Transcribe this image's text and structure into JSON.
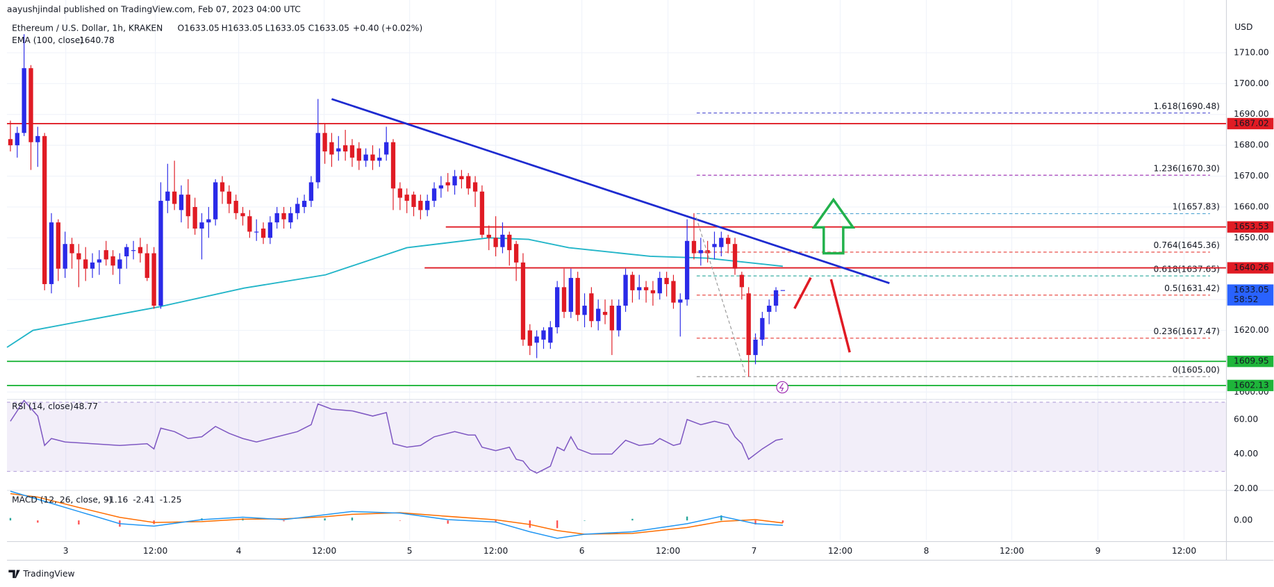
{
  "header": {
    "byline": "aayushjindal published on TradingView.com, Feb 07, 2023 04:00 UTC",
    "symbol": "Ethereum / U.S. Dollar, 1h, KRAKEN",
    "ohlc": [
      "O1633.05",
      "H1633.05",
      "L1633.05",
      "C1633.05",
      "+0.40 (+0.02%)"
    ],
    "currency": "USD",
    "footer": "TradingView"
  },
  "chart_data": [
    {
      "type": "candlestick",
      "up_color": "#2a2ae8",
      "down_color": "#e01b24",
      "xlim": [
        -0.5,
        177.9
      ],
      "ylim": [
        1597.6,
        1727.1
      ],
      "xticks": [
        {
          "value": 8.1,
          "label": "3"
        },
        {
          "value": 21.2,
          "label": "12:00"
        },
        {
          "value": 33.4,
          "label": "4"
        },
        {
          "value": 45.9,
          "label": "12:00"
        },
        {
          "value": 58.4,
          "label": "5"
        },
        {
          "value": 71.0,
          "label": "12:00"
        },
        {
          "value": 83.6,
          "label": "6"
        },
        {
          "value": 96.2,
          "label": "12:00"
        },
        {
          "value": 108.8,
          "label": "7"
        },
        {
          "value": 121.4,
          "label": "12:00"
        },
        {
          "value": 134.0,
          "label": "8"
        },
        {
          "value": 146.5,
          "label": "12:00"
        },
        {
          "value": 159.1,
          "label": "9"
        },
        {
          "value": 171.7,
          "label": "12:00"
        }
      ],
      "yticks": [
        {
          "value": 1600,
          "label": "1600.00"
        },
        {
          "value": 1610,
          "label": "1610.00"
        },
        {
          "value": 1620,
          "label": "1620.00"
        },
        {
          "value": 1630,
          "label": "1630.00"
        },
        {
          "value": 1640,
          "label": "1640.00"
        },
        {
          "value": 1650,
          "label": "1650.00"
        },
        {
          "value": 1660,
          "label": "1660.00"
        },
        {
          "value": 1670,
          "label": "1670.00"
        },
        {
          "value": 1680,
          "label": "1680.00"
        },
        {
          "value": 1690,
          "label": "1690.00"
        },
        {
          "value": 1700,
          "label": "1700.00"
        },
        {
          "value": 1710,
          "label": "1710.00"
        }
      ],
      "candles": [
        [
          1682,
          1688,
          1678,
          1680
        ],
        [
          1680,
          1686,
          1676,
          1684
        ],
        [
          1684,
          1716,
          1683,
          1705
        ],
        [
          1705,
          1706,
          1672,
          1681
        ],
        [
          1681,
          1686,
          1673,
          1683
        ],
        [
          1683,
          1684,
          1633,
          1635
        ],
        [
          1635,
          1658,
          1632,
          1655
        ],
        [
          1655,
          1656,
          1636,
          1640
        ],
        [
          1640,
          1652,
          1637,
          1648
        ],
        [
          1648,
          1650,
          1640,
          1645
        ],
        [
          1645,
          1648,
          1634,
          1643
        ],
        [
          1643,
          1647,
          1636,
          1640
        ],
        [
          1640,
          1645,
          1637,
          1642
        ],
        [
          1642,
          1646,
          1638,
          1643
        ],
        [
          1646,
          1649,
          1641,
          1643
        ],
        [
          1644,
          1646,
          1638,
          1641
        ],
        [
          1640,
          1645,
          1635,
          1643
        ],
        [
          1644,
          1648,
          1640,
          1647
        ],
        [
          1646,
          1649,
          1643,
          1646
        ],
        [
          1647,
          1650,
          1642,
          1645
        ],
        [
          1645,
          1648,
          1636,
          1637
        ],
        [
          1645,
          1647,
          1627,
          1628
        ],
        [
          1628,
          1668,
          1627,
          1662
        ],
        [
          1662,
          1674,
          1658,
          1665
        ],
        [
          1665,
          1675,
          1659,
          1661
        ],
        [
          1659,
          1667,
          1655,
          1664
        ],
        [
          1664,
          1669,
          1653,
          1657
        ],
        [
          1660,
          1663,
          1651,
          1653
        ],
        [
          1653,
          1658,
          1643,
          1655
        ],
        [
          1655,
          1660,
          1650,
          1656
        ],
        [
          1656,
          1669,
          1654,
          1668
        ],
        [
          1668,
          1670,
          1661,
          1665
        ],
        [
          1665,
          1667,
          1658,
          1661
        ],
        [
          1662,
          1664,
          1656,
          1658
        ],
        [
          1658,
          1660,
          1654,
          1657
        ],
        [
          1657,
          1659,
          1650,
          1652
        ],
        [
          1652,
          1656,
          1649,
          1652
        ],
        [
          1653,
          1655,
          1648,
          1650
        ],
        [
          1650,
          1657,
          1648,
          1655
        ],
        [
          1655,
          1660,
          1653,
          1658
        ],
        [
          1658,
          1660,
          1653,
          1656
        ],
        [
          1655,
          1660,
          1653,
          1658
        ],
        [
          1658,
          1663,
          1656,
          1661
        ],
        [
          1660,
          1664,
          1658,
          1662
        ],
        [
          1662,
          1670,
          1660,
          1668
        ],
        [
          1668,
          1695,
          1666,
          1684
        ],
        [
          1684,
          1687,
          1674,
          1678
        ],
        [
          1681,
          1684,
          1673,
          1677
        ],
        [
          1678,
          1683,
          1675,
          1679
        ],
        [
          1680,
          1685,
          1675,
          1678
        ],
        [
          1680,
          1682,
          1673,
          1676
        ],
        [
          1679,
          1681,
          1672,
          1675
        ],
        [
          1675,
          1679,
          1673,
          1677
        ],
        [
          1677,
          1680,
          1672,
          1675
        ],
        [
          1675,
          1679,
          1673,
          1676
        ],
        [
          1677,
          1686,
          1675,
          1681
        ],
        [
          1681,
          1682,
          1659,
          1666
        ],
        [
          1666,
          1668,
          1659,
          1663
        ],
        [
          1664,
          1666,
          1658,
          1662
        ],
        [
          1664,
          1665,
          1657,
          1660
        ],
        [
          1662,
          1664,
          1656,
          1659
        ],
        [
          1659,
          1664,
          1657,
          1662
        ],
        [
          1662,
          1668,
          1660,
          1666
        ],
        [
          1666,
          1670,
          1663,
          1667
        ],
        [
          1668,
          1671,
          1665,
          1667
        ],
        [
          1667,
          1672,
          1664,
          1670
        ],
        [
          1670,
          1672,
          1666,
          1669
        ],
        [
          1670,
          1671,
          1664,
          1666
        ],
        [
          1668,
          1670,
          1660,
          1665
        ],
        [
          1665,
          1667,
          1650,
          1651
        ],
        [
          1651,
          1654,
          1646,
          1650
        ],
        [
          1650,
          1657,
          1644,
          1647
        ],
        [
          1647,
          1655,
          1645,
          1651
        ],
        [
          1651,
          1652,
          1641,
          1646
        ],
        [
          1648,
          1649,
          1636,
          1642
        ],
        [
          1642,
          1645,
          1615,
          1617
        ],
        [
          1620,
          1622,
          1612,
          1615
        ],
        [
          1616,
          1620,
          1611,
          1618
        ],
        [
          1617,
          1621,
          1614,
          1620
        ],
        [
          1616,
          1623,
          1614,
          1621
        ],
        [
          1621,
          1636,
          1619,
          1634
        ],
        [
          1634,
          1640,
          1624,
          1626
        ],
        [
          1626,
          1640,
          1624,
          1637
        ],
        [
          1637,
          1639,
          1623,
          1625
        ],
        [
          1625,
          1632,
          1621,
          1628
        ],
        [
          1632,
          1634,
          1621,
          1623
        ],
        [
          1623,
          1630,
          1620,
          1627
        ],
        [
          1626,
          1630,
          1622,
          1625
        ],
        [
          1628,
          1630,
          1612,
          1620
        ],
        [
          1620,
          1630,
          1618,
          1628
        ],
        [
          1628,
          1640,
          1626,
          1638
        ],
        [
          1638,
          1639,
          1629,
          1633
        ],
        [
          1633,
          1638,
          1630,
          1634
        ],
        [
          1634,
          1636,
          1629,
          1633
        ],
        [
          1633,
          1636,
          1628,
          1632
        ],
        [
          1632,
          1639,
          1630,
          1637
        ],
        [
          1637,
          1639,
          1631,
          1635
        ],
        [
          1636,
          1638,
          1627,
          1629
        ],
        [
          1629,
          1632,
          1618,
          1630
        ],
        [
          1630,
          1656,
          1628,
          1649
        ],
        [
          1649,
          1658,
          1643,
          1645
        ],
        [
          1645,
          1650,
          1641,
          1646
        ],
        [
          1646,
          1649,
          1642,
          1645
        ],
        [
          1647,
          1652,
          1643,
          1648
        ],
        [
          1647,
          1652,
          1644,
          1650
        ],
        [
          1650,
          1651,
          1645,
          1648
        ],
        [
          1648,
          1650,
          1638,
          1640
        ],
        [
          1638,
          1639,
          1630,
          1634
        ],
        [
          1632,
          1634,
          1605,
          1612
        ],
        [
          1612,
          1619,
          1609,
          1617
        ],
        [
          1617,
          1626,
          1615,
          1624
        ],
        [
          1626,
          1630,
          1622,
          1628
        ],
        [
          1628,
          1634,
          1626,
          1633
        ],
        [
          1633.05,
          1633.05,
          1633.05,
          1633.05
        ]
      ],
      "ema": {
        "name": "EMA (100, close)",
        "color": "#22b5c8",
        "x": [
          -0.5,
          3.3,
          10.5,
          21.7,
          34.2,
          46.1,
          58,
          70,
          75.8,
          81.7,
          93.6,
          102,
          113
        ],
        "values": [
          1614.5,
          1620,
          1623,
          1627.6,
          1633.7,
          1638,
          1646.8,
          1650,
          1649.5,
          1646.8,
          1644,
          1643.4,
          1640.78
        ]
      },
      "trendline": {
        "color": "#1e2bd0",
        "x": [
          47,
          128.6
        ],
        "values": [
          1695,
          1635.3
        ]
      },
      "hlines": [
        {
          "value": 1687.02,
          "color": "#e01b24"
        },
        {
          "value": 1653.53,
          "color": "#e01b24",
          "from": 63.7
        },
        {
          "value": 1640.26,
          "color": "#e01b24",
          "from": 60.6
        },
        {
          "value": 1609.95,
          "color": "#1eb53a"
        },
        {
          "value": 1602.13,
          "color": "#1eb53a"
        }
      ],
      "fib": {
        "x": [
          100.4,
          175.5
        ],
        "levels": [
          {
            "value": 1690.48,
            "label": "1.618(1690.48)",
            "color": "#5b5bd6"
          },
          {
            "value": 1670.3,
            "label": "1.236(1670.30)",
            "color": "#9c27b0"
          },
          {
            "value": 1657.83,
            "label": "1(1657.83)",
            "color": "#4fa3d1"
          },
          {
            "value": 1645.36,
            "label": "0.764(1645.36)",
            "color": "#e53935"
          },
          {
            "value": 1637.65,
            "label": "0.618(1637.65)",
            "color": "#26a69a"
          },
          {
            "value": 1631.42,
            "label": "0.5(1631.42)",
            "color": "#e53935"
          },
          {
            "value": 1617.47,
            "label": "0.236(1617.47)",
            "color": "#e53935"
          },
          {
            "value": 1605.0,
            "label": "0(1605.00)",
            "color": "#888888"
          }
        ]
      },
      "last": {
        "value": 1633.05,
        "countdown": "58:52",
        "color": "#2962ff"
      }
    },
    {
      "type": "rsi",
      "name": "RSI (14, close)",
      "color": "#7e57c2",
      "band": [
        30,
        70
      ],
      "ylim": [
        19,
        71.6
      ],
      "yticks": [
        {
          "value": 20,
          "label": "20.00"
        },
        {
          "value": 40,
          "label": "40.00"
        },
        {
          "value": 60,
          "label": "60.00"
        }
      ],
      "x": [
        0,
        2,
        4,
        5,
        6,
        8,
        12,
        16,
        20,
        21,
        22,
        24,
        26,
        28,
        30,
        32,
        34,
        36,
        38,
        42,
        44,
        45,
        47,
        50,
        53,
        55,
        56,
        58,
        60,
        62,
        65,
        67,
        68,
        69,
        71,
        73,
        74,
        75,
        76,
        77,
        78,
        79,
        80,
        81,
        82,
        83,
        85,
        88,
        90,
        92,
        94,
        95,
        97,
        98,
        99,
        101,
        103,
        105,
        106,
        107,
        108,
        110,
        112,
        113
      ],
      "values": [
        59,
        71,
        62,
        45,
        49,
        47,
        46,
        45,
        46,
        43,
        55,
        53,
        49,
        50,
        56,
        52,
        49,
        47,
        49,
        53,
        57,
        69,
        66,
        65,
        62,
        64,
        46,
        44,
        45,
        50,
        53,
        51,
        51,
        44,
        42,
        44,
        37,
        36,
        31,
        29,
        31,
        33,
        44,
        42,
        50,
        43,
        40,
        40,
        48,
        45,
        46,
        49,
        45,
        46,
        60,
        57,
        59,
        57,
        50,
        46,
        37,
        43,
        48,
        48.77
      ]
    },
    {
      "type": "macd",
      "name": "MACD (12, 26, close, 9)",
      "ylim": [
        -9.6,
        14.8
      ],
      "yticks": [
        {
          "value": 0,
          "label": "0.00"
        }
      ],
      "x": [
        0,
        4,
        10,
        16,
        21,
        28,
        34,
        40,
        46,
        50,
        57,
        64,
        71,
        76,
        80,
        84,
        91,
        99,
        104,
        109,
        113
      ],
      "histogram": {
        "up_color": "#26a69a",
        "down_color": "#ff5252",
        "values": [
          1.2,
          -1.1,
          -2.0,
          -3.1,
          -1.8,
          1.0,
          1.0,
          -0.4,
          1.0,
          1.4,
          -0.2,
          -1.6,
          -1.1,
          -3.6,
          -3.8,
          0.0,
          0.8,
          1.9,
          2.5,
          -2.0,
          -1.16
        ]
      },
      "macd": {
        "color": "#2196f3",
        "values": [
          14.4,
          10.4,
          4.4,
          -1.6,
          -2.8,
          0.4,
          1.6,
          0.4,
          2.8,
          4.4,
          3.6,
          0.4,
          -0.8,
          -5.6,
          -8.8,
          -6.8,
          -5.6,
          -1.6,
          2,
          -1.6,
          -2.41
        ]
      },
      "signal": {
        "color": "#ff6d00",
        "values": [
          13.2,
          11.5,
          6.4,
          1.5,
          -1.0,
          -0.6,
          0.6,
          0.8,
          1.8,
          3.0,
          3.8,
          2.0,
          0.3,
          -2.0,
          -5.0,
          -6.8,
          -6.4,
          -3.5,
          -0.5,
          0.4,
          -1.25
        ]
      }
    }
  ]
}
